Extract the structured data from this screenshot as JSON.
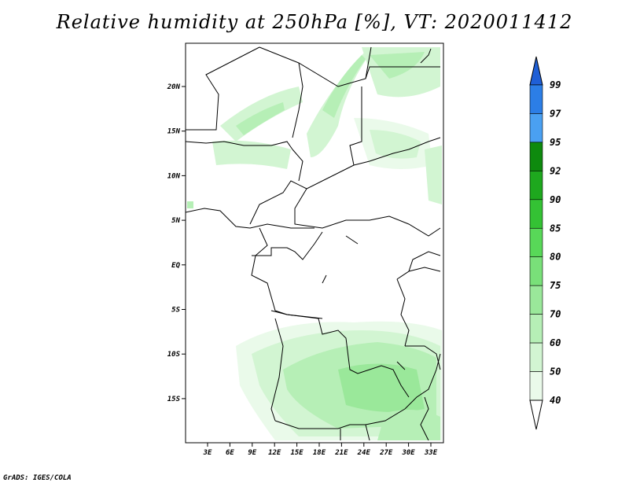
{
  "title": "Relative humidity at 250hPa [%], VT: 2020011412",
  "credit": "GrADS: IGES/COLA",
  "lat_ticks": [
    "20N",
    "15N",
    "10N",
    "5N",
    "EQ",
    "5S",
    "10S",
    "15S"
  ],
  "lon_ticks": [
    "3E",
    "6E",
    "9E",
    "12E",
    "15E",
    "18E",
    "21E",
    "24E",
    "27E",
    "30E",
    "33E"
  ],
  "colorbar": {
    "levels": [
      "99",
      "97",
      "95",
      "92",
      "90",
      "85",
      "80",
      "75",
      "70",
      "60",
      "50",
      "40"
    ],
    "colors": [
      "#1f5fd6",
      "#2c7ee6",
      "#4aa0f2",
      "#0e8a0e",
      "#1ea81e",
      "#34c234",
      "#58d858",
      "#79e079",
      "#9ae89a",
      "#b6efb6",
      "#d2f5d2",
      "#eafaea",
      "#ffffff"
    ]
  },
  "map": {
    "ocean_color": "#ffffff",
    "land_border_color": "#000000",
    "shade_colors": [
      "#eafaea",
      "#d2f5d2",
      "#b6efb6",
      "#9ae89a"
    ]
  }
}
